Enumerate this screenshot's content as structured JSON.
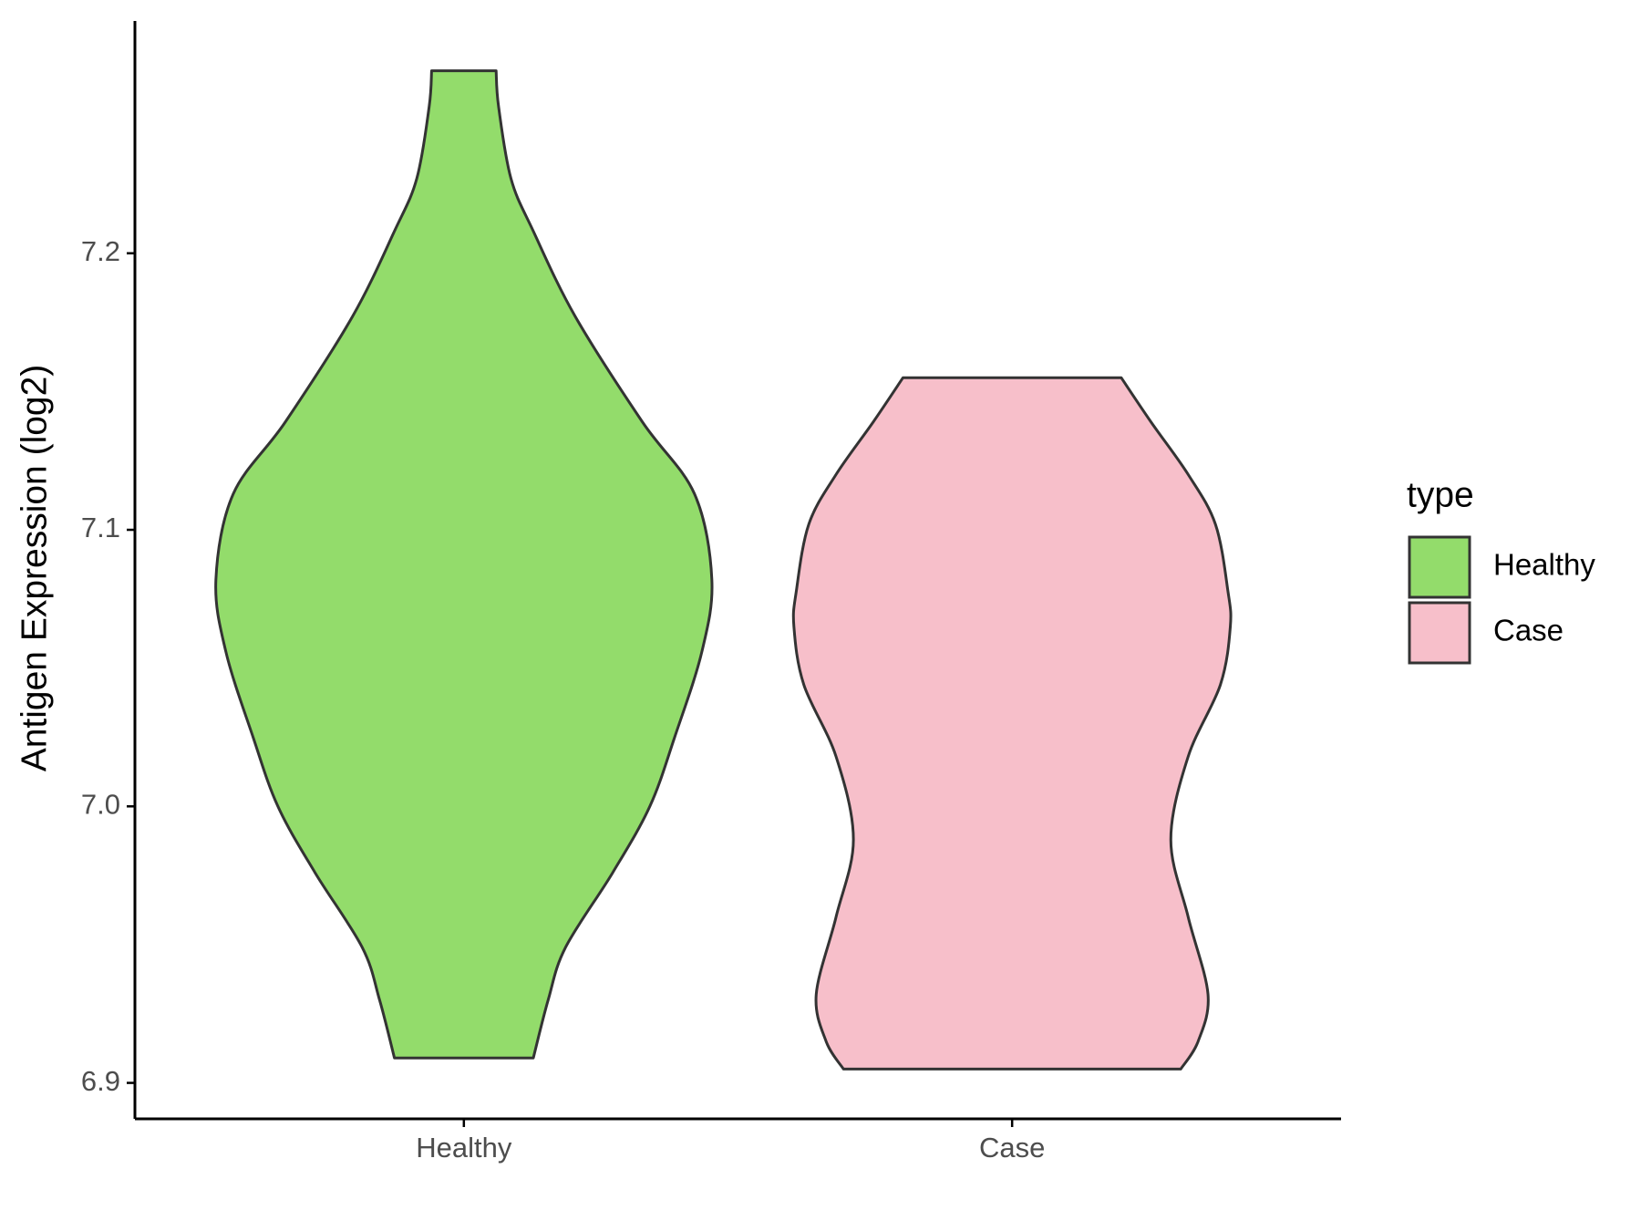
{
  "chart_data": {
    "type": "violin",
    "ylabel": "Antigen Expression (log2)",
    "categories": [
      "Healthy",
      "Case"
    ],
    "legend_title": "type",
    "legend": "right",
    "ylim": [
      6.887,
      7.284
    ],
    "yticks": [
      6.9,
      {
        "value": 7.0,
        "label": "7.0"
      },
      7.1,
      7.2
    ],
    "series": [
      {
        "name": "Healthy",
        "color": "#93dc6b",
        "y": [
          7.266,
          7.253,
          7.227,
          7.208,
          7.177,
          7.139,
          7.113,
          7.082,
          7.056,
          7.025,
          7.0,
          6.976,
          6.949,
          6.93,
          6.909
        ],
        "widths": [
          0.13,
          0.14,
          0.19,
          0.28,
          0.45,
          0.72,
          0.93,
          1.0,
          0.96,
          0.85,
          0.75,
          0.6,
          0.41,
          0.34,
          0.28
        ]
      },
      {
        "name": "Case",
        "color": "#f7bfca",
        "y": [
          7.155,
          7.139,
          7.12,
          7.102,
          7.078,
          7.065,
          7.044,
          7.018,
          6.988,
          6.96,
          6.932,
          6.915,
          6.905
        ],
        "widths": [
          0.44,
          0.56,
          0.71,
          0.82,
          0.87,
          0.88,
          0.84,
          0.71,
          0.64,
          0.71,
          0.79,
          0.75,
          0.68
        ]
      }
    ]
  }
}
